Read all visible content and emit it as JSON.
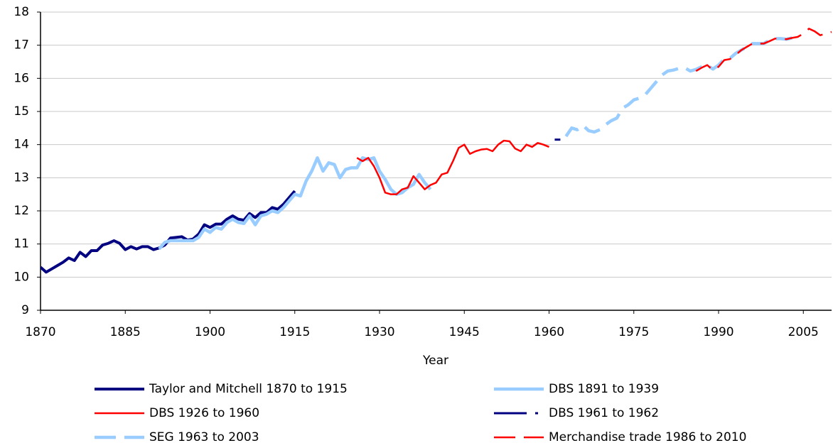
{
  "chart_data": {
    "type": "line",
    "x_label": "Year",
    "xlim": [
      1870,
      2010
    ],
    "xticks": [
      1870,
      1885,
      1900,
      1915,
      1930,
      1945,
      1960,
      1975,
      1990,
      2005
    ],
    "ylim": [
      9,
      18
    ],
    "yticks": [
      9,
      10,
      11,
      12,
      13,
      14,
      15,
      16,
      17,
      18
    ],
    "grid": true,
    "legend": "bottom",
    "series": [
      {
        "name": "Taylor and Mitchell 1870 to 1915",
        "color": "#000080",
        "style": "solid",
        "x": [
          1870,
          1871,
          1872,
          1873,
          1874,
          1875,
          1876,
          1877,
          1878,
          1879,
          1880,
          1881,
          1882,
          1883,
          1884,
          1885,
          1886,
          1887,
          1888,
          1889,
          1890,
          1891,
          1892,
          1893,
          1894,
          1895,
          1896,
          1897,
          1898,
          1899,
          1900,
          1901,
          1902,
          1903,
          1904,
          1905,
          1906,
          1907,
          1908,
          1909,
          1910,
          1911,
          1912,
          1913,
          1914,
          1915
        ],
        "values": [
          10.3,
          10.15,
          10.25,
          10.35,
          10.45,
          10.58,
          10.5,
          10.75,
          10.62,
          10.8,
          10.8,
          10.97,
          11.02,
          11.1,
          11.02,
          10.83,
          10.92,
          10.85,
          10.92,
          10.92,
          10.83,
          10.88,
          10.97,
          11.18,
          11.2,
          11.22,
          11.12,
          11.15,
          11.3,
          11.58,
          11.5,
          11.6,
          11.6,
          11.75,
          11.85,
          11.75,
          11.72,
          11.92,
          11.8,
          11.95,
          11.95,
          12.1,
          12.05,
          12.2,
          12.4,
          12.6
        ]
      },
      {
        "name": "DBS 1891 to 1939",
        "color": "#99ccff",
        "style": "solid",
        "x": [
          1891,
          1892,
          1893,
          1894,
          1895,
          1896,
          1897,
          1898,
          1899,
          1900,
          1901,
          1902,
          1903,
          1904,
          1905,
          1906,
          1907,
          1908,
          1909,
          1910,
          1911,
          1912,
          1913,
          1914,
          1915,
          1916,
          1917,
          1918,
          1919,
          1920,
          1921,
          1922,
          1923,
          1924,
          1925,
          1926,
          1927,
          1928,
          1929,
          1930,
          1931,
          1932,
          1933,
          1934,
          1935,
          1936,
          1937,
          1938,
          1939
        ],
        "values": [
          10.85,
          11.05,
          11.1,
          11.1,
          11.1,
          11.1,
          11.1,
          11.2,
          11.45,
          11.35,
          11.5,
          11.45,
          11.65,
          11.75,
          11.65,
          11.62,
          11.85,
          11.58,
          11.85,
          11.9,
          12.0,
          11.95,
          12.1,
          12.3,
          12.5,
          12.45,
          12.9,
          13.2,
          13.6,
          13.2,
          13.45,
          13.4,
          13.0,
          13.25,
          13.3,
          13.3,
          13.6,
          13.55,
          13.6,
          13.2,
          12.95,
          12.65,
          12.5,
          12.55,
          12.7,
          12.8,
          13.1,
          12.85,
          12.65
        ]
      },
      {
        "name": "DBS 1926 to 1960",
        "color": "#ff0000",
        "style": "solid",
        "x": [
          1926,
          1927,
          1928,
          1929,
          1930,
          1931,
          1932,
          1933,
          1934,
          1935,
          1936,
          1937,
          1938,
          1939,
          1940,
          1941,
          1942,
          1943,
          1944,
          1945,
          1946,
          1947,
          1948,
          1949,
          1950,
          1951,
          1952,
          1953,
          1954,
          1955,
          1956,
          1957,
          1958,
          1959,
          1960
        ],
        "values": [
          13.6,
          13.5,
          13.6,
          13.35,
          13.0,
          12.55,
          12.5,
          12.5,
          12.65,
          12.7,
          13.05,
          12.85,
          12.65,
          12.78,
          12.85,
          13.1,
          13.15,
          13.5,
          13.9,
          14.0,
          13.72,
          13.8,
          13.85,
          13.87,
          13.8,
          14.0,
          14.12,
          14.1,
          13.88,
          13.8,
          14.0,
          13.93,
          14.05,
          14.0,
          13.93
        ]
      },
      {
        "name": "DBS 1961 to 1962",
        "color": "#000080",
        "style": "dashdot",
        "x": [
          1961,
          1962
        ],
        "values": [
          14.15,
          14.15
        ]
      },
      {
        "name": "SEG 1963 to 2003",
        "color": "#99ccff",
        "style": "dashed",
        "x": [
          1963,
          1964,
          1965,
          1966,
          1967,
          1968,
          1969,
          1970,
          1971,
          1972,
          1973,
          1974,
          1975,
          1976,
          1977,
          1978,
          1979,
          1980,
          1981,
          1982,
          1983,
          1984,
          1985,
          1986,
          1987,
          1988,
          1989,
          1990,
          1991,
          1992,
          1993,
          1994,
          1995,
          1996,
          1997,
          1998,
          1999,
          2000,
          2001,
          2002,
          2003
        ],
        "values": [
          14.25,
          14.5,
          14.45,
          14.58,
          14.42,
          14.38,
          14.45,
          14.6,
          14.72,
          14.8,
          15.1,
          15.2,
          15.35,
          15.4,
          15.5,
          15.7,
          15.9,
          16.1,
          16.22,
          16.25,
          16.3,
          16.32,
          16.22,
          16.27,
          16.35,
          16.4,
          16.28,
          16.4,
          16.58,
          16.6,
          16.75,
          16.85,
          16.95,
          17.05,
          17.05,
          17.05,
          17.15,
          17.2,
          17.2,
          17.18,
          17.22
        ]
      },
      {
        "name": "Merchandise trade 1986 to 2010",
        "color": "#ff0000",
        "style": "dashed",
        "x": [
          1986,
          1987,
          1988,
          1989,
          1990,
          1991,
          1992,
          1993,
          1994,
          1995,
          1996,
          1997,
          1998,
          1999,
          2000,
          2001,
          2002,
          2003,
          2004,
          2005,
          2006,
          2007,
          2008,
          2009,
          2010
        ],
        "values": [
          16.22,
          16.32,
          16.4,
          16.25,
          16.35,
          16.55,
          16.58,
          16.7,
          16.85,
          16.95,
          17.05,
          17.05,
          17.05,
          17.12,
          17.2,
          17.2,
          17.18,
          17.22,
          17.25,
          17.35,
          17.5,
          17.42,
          17.3,
          17.35,
          17.4
        ]
      }
    ]
  }
}
